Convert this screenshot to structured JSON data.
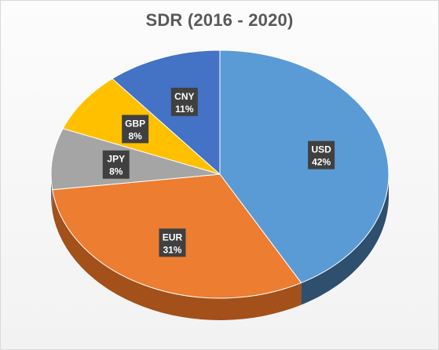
{
  "chart_data": {
    "type": "pie",
    "title": "SDR (2016 - 2020)",
    "categories": [
      "USD",
      "EUR",
      "JPY",
      "GBP",
      "CNY"
    ],
    "values": [
      42,
      31,
      8,
      8,
      11
    ],
    "labels": [
      "42%",
      "31%",
      "8%",
      "8%",
      "11%"
    ],
    "colors": [
      "#5b9bd5",
      "#ed7d31",
      "#a5a5a5",
      "#ffc000",
      "#4472c4"
    ],
    "side_colors": [
      "#2e4f6e",
      "#a3501a",
      "#6e6e6e",
      "#b38600",
      "#2b4a80"
    ],
    "style": "3d",
    "legend": "none"
  }
}
